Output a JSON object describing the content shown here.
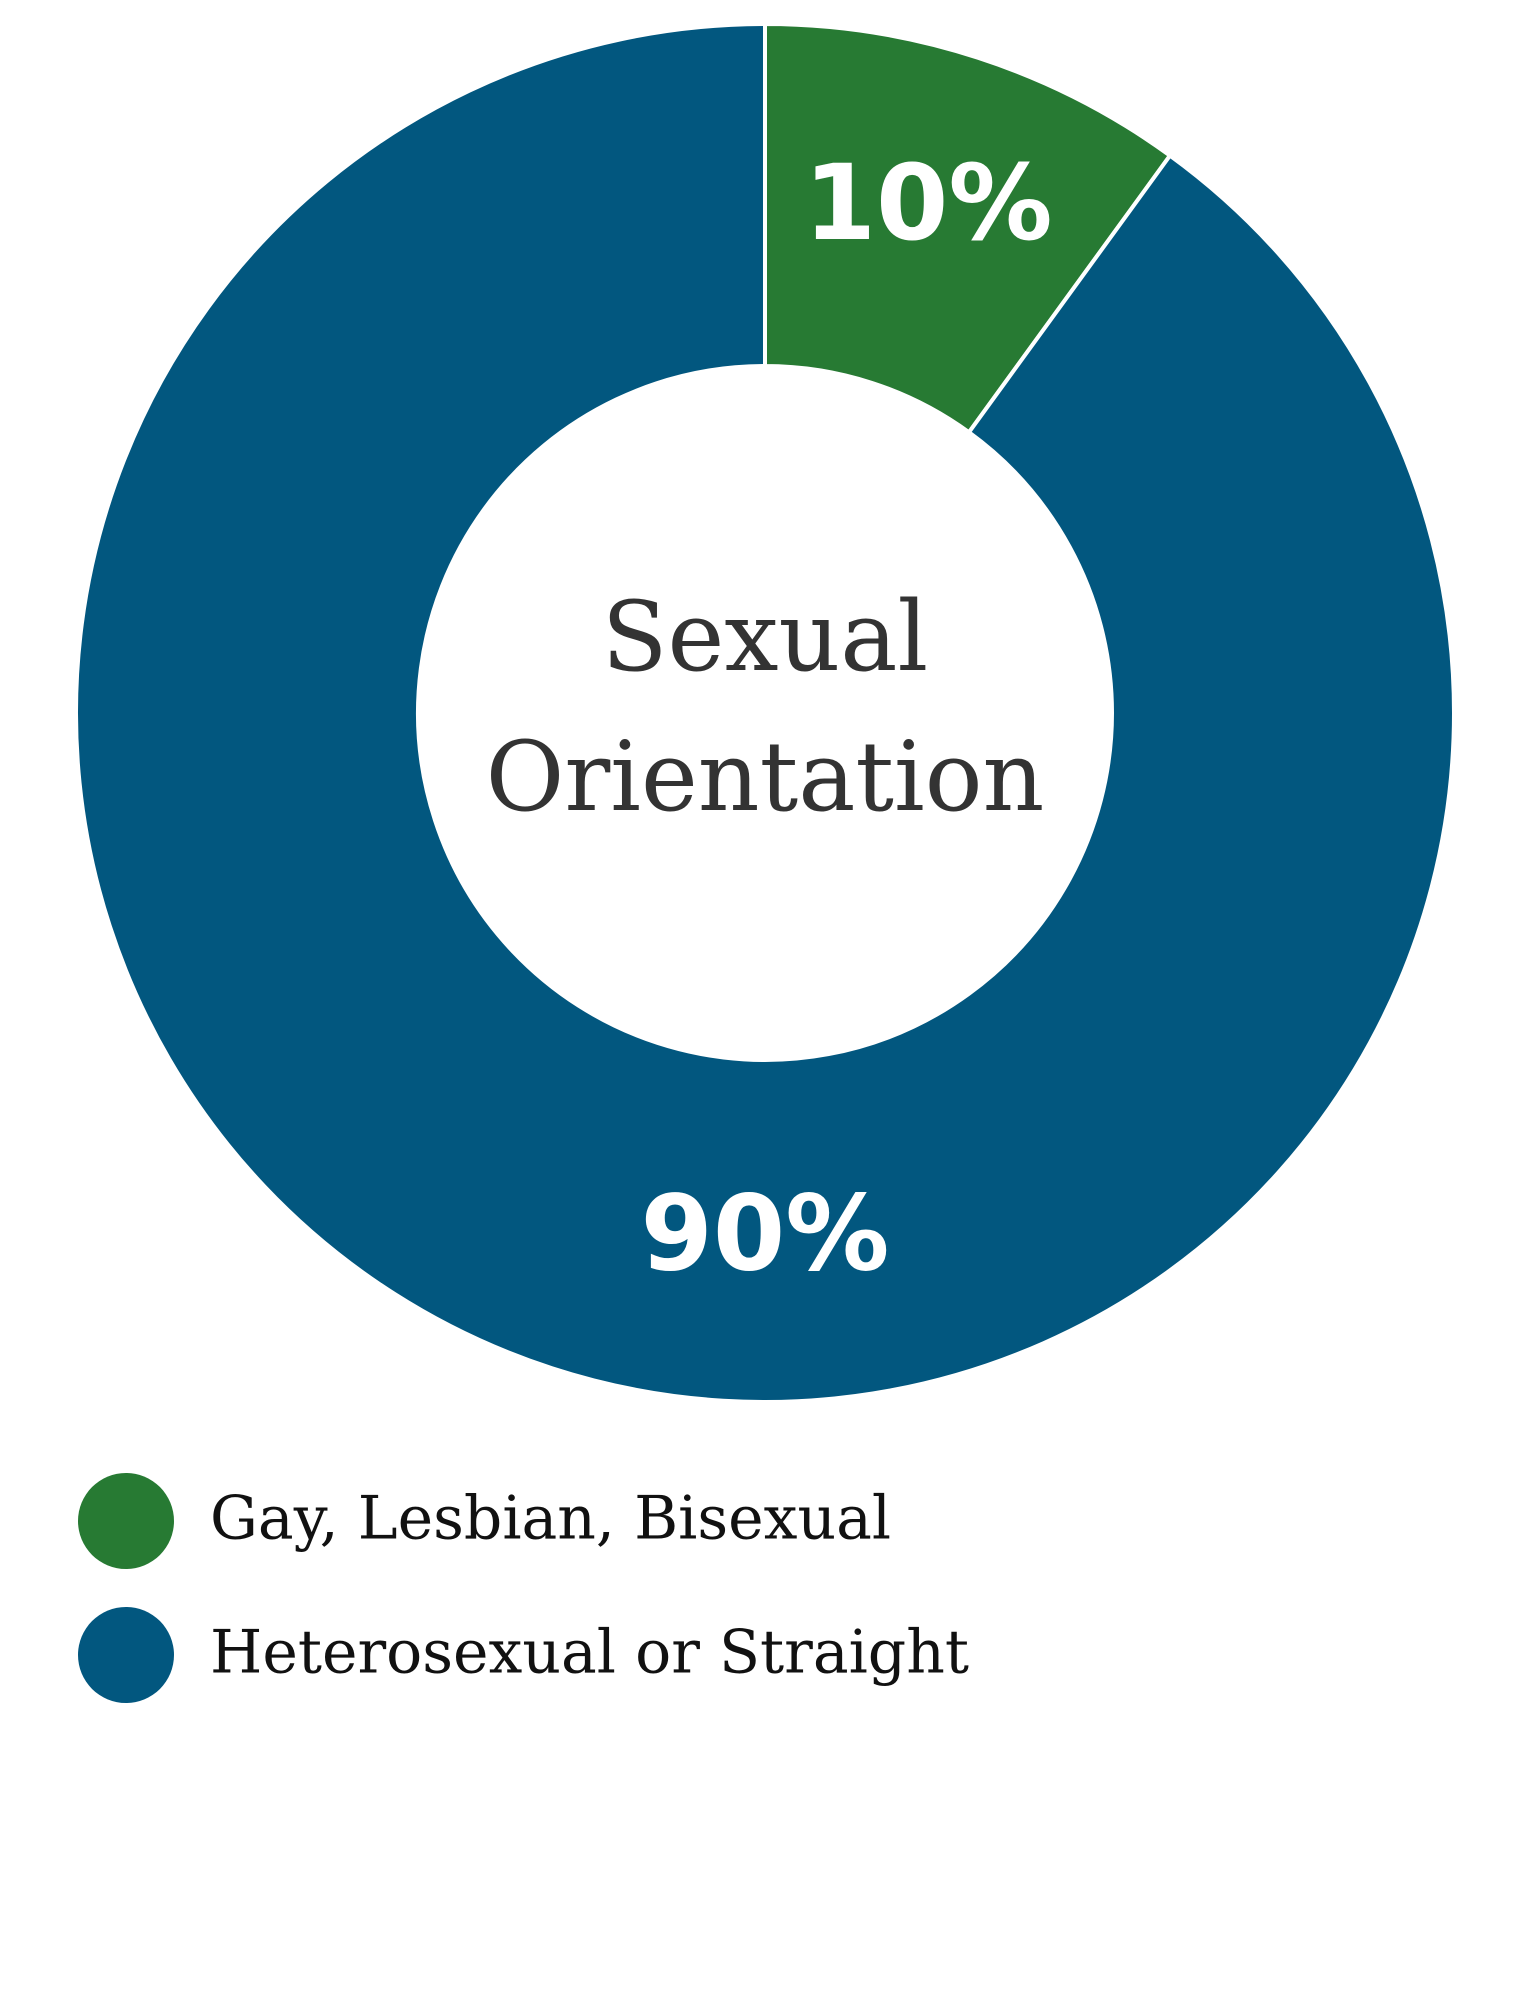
{
  "chart_data": {
    "type": "donut",
    "title": [
      "Sexual",
      "Orientation"
    ],
    "categories": [
      "Gay, Lesbian, Bisexual",
      "Heterosexual or Straight"
    ],
    "values": [
      10,
      90
    ],
    "value_labels": [
      "10%",
      "90%"
    ],
    "colors": [
      "#277a33",
      "#02577f"
    ]
  }
}
